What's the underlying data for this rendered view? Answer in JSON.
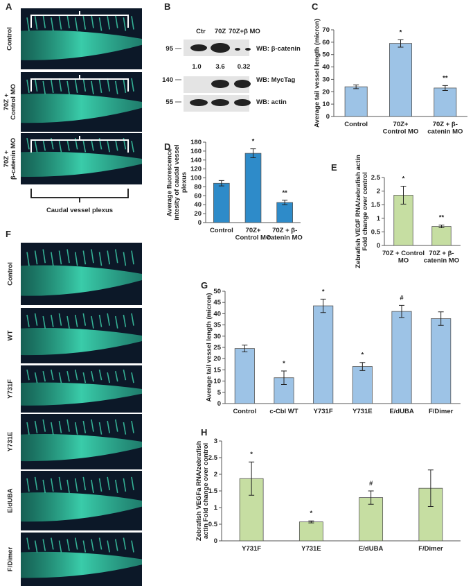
{
  "panel_a": {
    "letter": "A",
    "labels": [
      "Control",
      "70Z +\nControl MO",
      "70Z +\nβ-catenin  MO"
    ],
    "caption": "Caudal vessel plexus"
  },
  "panel_b": {
    "letter": "B",
    "lanes": [
      "Ctr",
      "70Z",
      "70Z+β MO"
    ],
    "markers": [
      "95",
      "140",
      "55"
    ],
    "blots": [
      "WB: β-catenin",
      "WB: MycTag",
      "WB: actin"
    ],
    "quantification": [
      "1.0",
      "3.6",
      "0.32"
    ]
  },
  "panel_f": {
    "letter": "F",
    "labels": [
      "Control",
      "WT",
      "Y731F",
      "Y731E",
      "E/dUBA",
      "F/Dimer"
    ]
  },
  "chart_data": [
    {
      "type": "bar",
      "letter": "C",
      "ylabel": "Average tail vessel length (micron)",
      "categories": [
        "Control",
        "70Z+\nControl MO",
        "70Z + β-\ncatenin  MO"
      ],
      "values": [
        24,
        59,
        23
      ],
      "errors": [
        1.5,
        3,
        2
      ],
      "annotations": [
        null,
        "*",
        "**"
      ],
      "color": "#9dc3e6",
      "ylim": [
        0,
        70
      ],
      "yticks": [
        0,
        10,
        20,
        30,
        40,
        50,
        60,
        70
      ]
    },
    {
      "type": "bar",
      "letter": "D",
      "ylabel": "Average fluorescence\nintesity of caudal vessel\nplexus",
      "categories": [
        "Control",
        "70Z+\nControl MO",
        "70Z + β-\ncatenin  MO"
      ],
      "values": [
        88,
        155,
        45
      ],
      "errors": [
        6,
        10,
        5
      ],
      "annotations": [
        null,
        "*",
        "**"
      ],
      "color": "#2e8bc9",
      "ylim": [
        0,
        180
      ],
      "yticks": [
        0,
        20,
        40,
        60,
        80,
        100,
        120,
        140,
        160,
        180
      ]
    },
    {
      "type": "bar",
      "letter": "E",
      "ylabel": "Zebrafish VEGF RNA/zebrafish actin\nFold change over control",
      "categories": [
        "70Z + Control\nMO",
        "70Z + β-\ncatenin MO"
      ],
      "values": [
        1.85,
        0.7
      ],
      "errors": [
        0.33,
        0.05
      ],
      "annotations": [
        "*",
        "**"
      ],
      "color": "#c6dea2",
      "ylim": [
        0,
        2.5
      ],
      "yticks": [
        0,
        0.5,
        1,
        1.5,
        2,
        2.5
      ]
    },
    {
      "type": "bar",
      "letter": "G",
      "ylabel": "Average tail vessel length (micron)",
      "categories": [
        "Control",
        "c-Cbl WT",
        "Y731F",
        "Y731E",
        "E/dUBA",
        "F/Dimer"
      ],
      "values": [
        24.5,
        11.5,
        43.5,
        16.5,
        41,
        37.8
      ],
      "errors": [
        1.5,
        3,
        3,
        1.8,
        2.7,
        3
      ],
      "annotations": [
        null,
        "*",
        "*",
        "*",
        "#",
        null
      ],
      "color": "#9dc3e6",
      "ylim": [
        0,
        50
      ],
      "yticks": [
        0,
        5,
        10,
        15,
        20,
        25,
        30,
        35,
        40,
        45,
        50
      ]
    },
    {
      "type": "bar",
      "letter": "H",
      "ylabel": "Zebrafish VEGFa RNA/zebrafish\nactin Fold change over control",
      "categories": [
        "Y731F",
        "Y731E",
        "E/dUBA",
        "F/Dimer"
      ],
      "values": [
        1.87,
        0.57,
        1.3,
        1.58
      ],
      "errors": [
        0.5,
        0.03,
        0.2,
        0.55
      ],
      "annotations": [
        "*",
        "*",
        "#",
        null
      ],
      "color": "#c6dea2",
      "ylim": [
        0,
        3
      ],
      "yticks": [
        0,
        0.5,
        1,
        1.5,
        2,
        2.5,
        3
      ]
    }
  ]
}
